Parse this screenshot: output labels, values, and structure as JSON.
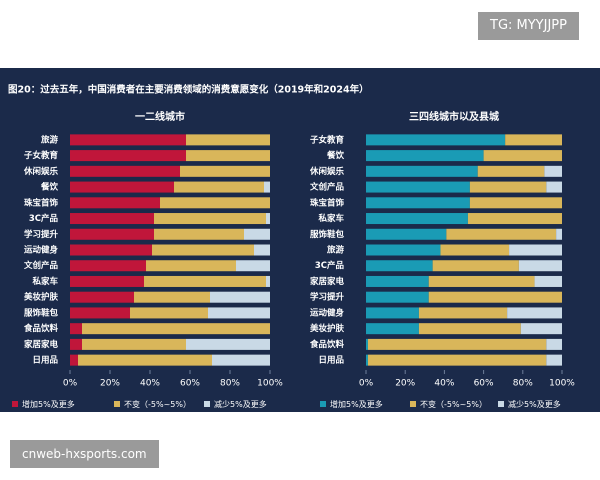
{
  "badge": "TG: MYYJJPP",
  "footer_badge": "cnweb-hxsports.com",
  "title": "图20：过去五年，中国消费者在主要消费领域的消费意愿变化（2019年和2024年）",
  "chart_data": [
    {
      "type": "stacked_barh",
      "subtitle": "一二线城市",
      "categories": [
        "旅游",
        "子女教育",
        "休闲娱乐",
        "餐饮",
        "珠宝首饰",
        "3C产品",
        "学习提升",
        "运动健身",
        "文创产品",
        "私家车",
        "美妆护肤",
        "服饰鞋包",
        "食品饮料",
        "家居家电",
        "日用品"
      ],
      "series": [
        {
          "name": "增加5%及更多",
          "color": "#c0163a",
          "values": [
            58,
            58,
            55,
            52,
            45,
            42,
            42,
            41,
            38,
            37,
            32,
            30,
            6,
            6,
            4
          ]
        },
        {
          "name": "不变（-5%~5%）",
          "color": "#d9b65a",
          "values": [
            42,
            42,
            45,
            45,
            55,
            56,
            45,
            51,
            45,
            61,
            38,
            39,
            94,
            52,
            67
          ]
        },
        {
          "name": "减少5%及更多",
          "color": "#c9d9e6",
          "values": [
            0,
            0,
            0,
            3,
            0,
            2,
            13,
            8,
            17,
            2,
            30,
            31,
            0,
            42,
            29
          ]
        }
      ],
      "xlim": [
        0,
        100
      ],
      "xticks": [
        {
          "value": 0,
          "label": "0%"
        },
        {
          "value": 20,
          "label": "20%"
        },
        {
          "value": 40,
          "label": "40%"
        },
        {
          "value": 60,
          "label": "60%"
        },
        {
          "value": 80,
          "label": "80%"
        },
        {
          "value": 100,
          "label": "100%"
        }
      ]
    },
    {
      "type": "stacked_barh",
      "subtitle": "三四线城市以及县城",
      "categories": [
        "子女教育",
        "餐饮",
        "休闲娱乐",
        "文创产品",
        "珠宝首饰",
        "私家车",
        "服饰鞋包",
        "旅游",
        "3C产品",
        "家居家电",
        "学习提升",
        "运动健身",
        "美妆护肤",
        "食品饮料",
        "日用品"
      ],
      "series": [
        {
          "name": "增加5%及更多",
          "color": "#1a9bb5",
          "values": [
            71,
            60,
            57,
            53,
            53,
            52,
            41,
            38,
            34,
            32,
            32,
            27,
            27,
            1,
            1
          ]
        },
        {
          "name": "不变（-5%~5%）",
          "color": "#d9b65a",
          "values": [
            29,
            40,
            34,
            39,
            47,
            48,
            56,
            35,
            44,
            54,
            68,
            45,
            52,
            91,
            91
          ]
        },
        {
          "name": "减少5%及更多",
          "color": "#c9d9e6",
          "values": [
            0,
            0,
            9,
            8,
            0,
            0,
            3,
            27,
            22,
            14,
            0,
            28,
            21,
            8,
            8
          ]
        }
      ],
      "xlim": [
        0,
        100
      ],
      "xticks": [
        {
          "value": 0,
          "label": "0%"
        },
        {
          "value": 20,
          "label": "20%"
        },
        {
          "value": 40,
          "label": "40%"
        },
        {
          "value": 60,
          "label": "60%"
        },
        {
          "value": 80,
          "label": "80%"
        },
        {
          "value": 100,
          "label": "100%"
        }
      ]
    }
  ]
}
